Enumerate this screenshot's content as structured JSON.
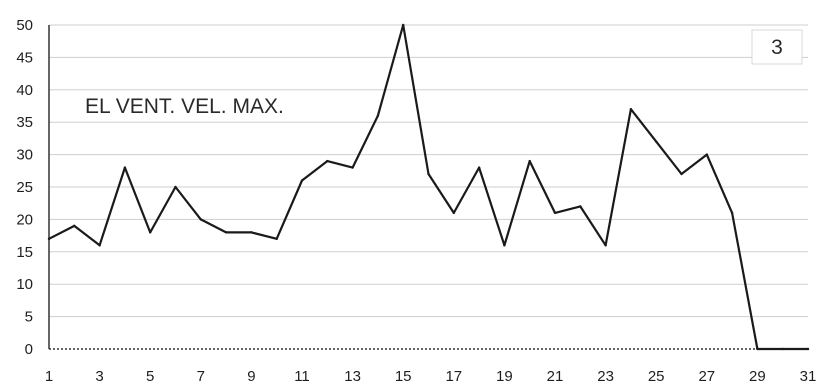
{
  "chart_data": {
    "type": "line",
    "title": "",
    "annotation": "EL VENT. VEL. MAX.",
    "chart_number": "3",
    "xlabel": "",
    "ylabel": "",
    "x": [
      1,
      2,
      3,
      4,
      5,
      6,
      7,
      8,
      9,
      10,
      11,
      12,
      13,
      14,
      15,
      16,
      17,
      18,
      19,
      20,
      21,
      22,
      23,
      24,
      25,
      26,
      27,
      28,
      29,
      30,
      31
    ],
    "values": [
      17,
      19,
      16,
      28,
      18,
      25,
      20,
      18,
      18,
      17,
      26,
      29,
      28,
      36,
      50,
      27,
      21,
      28,
      16,
      29,
      21,
      22,
      16,
      37,
      32,
      27,
      30,
      21,
      0,
      0,
      0
    ],
    "x_tick_labels": [
      "1",
      "3",
      "5",
      "7",
      "9",
      "11",
      "13",
      "15",
      "17",
      "19",
      "21",
      "23",
      "25",
      "27",
      "29",
      "31"
    ],
    "y_tick_labels": [
      "0",
      "5",
      "10",
      "15",
      "20",
      "25",
      "30",
      "35",
      "40",
      "45",
      "50"
    ],
    "ylim": [
      0,
      50
    ],
    "xlim": [
      1,
      31
    ],
    "grid": "horizontal",
    "legend": "none",
    "colors": {
      "line": "#1a1a1a",
      "grid": "#cfcfcf",
      "axis": "#333333",
      "background": "#ffffff"
    }
  }
}
